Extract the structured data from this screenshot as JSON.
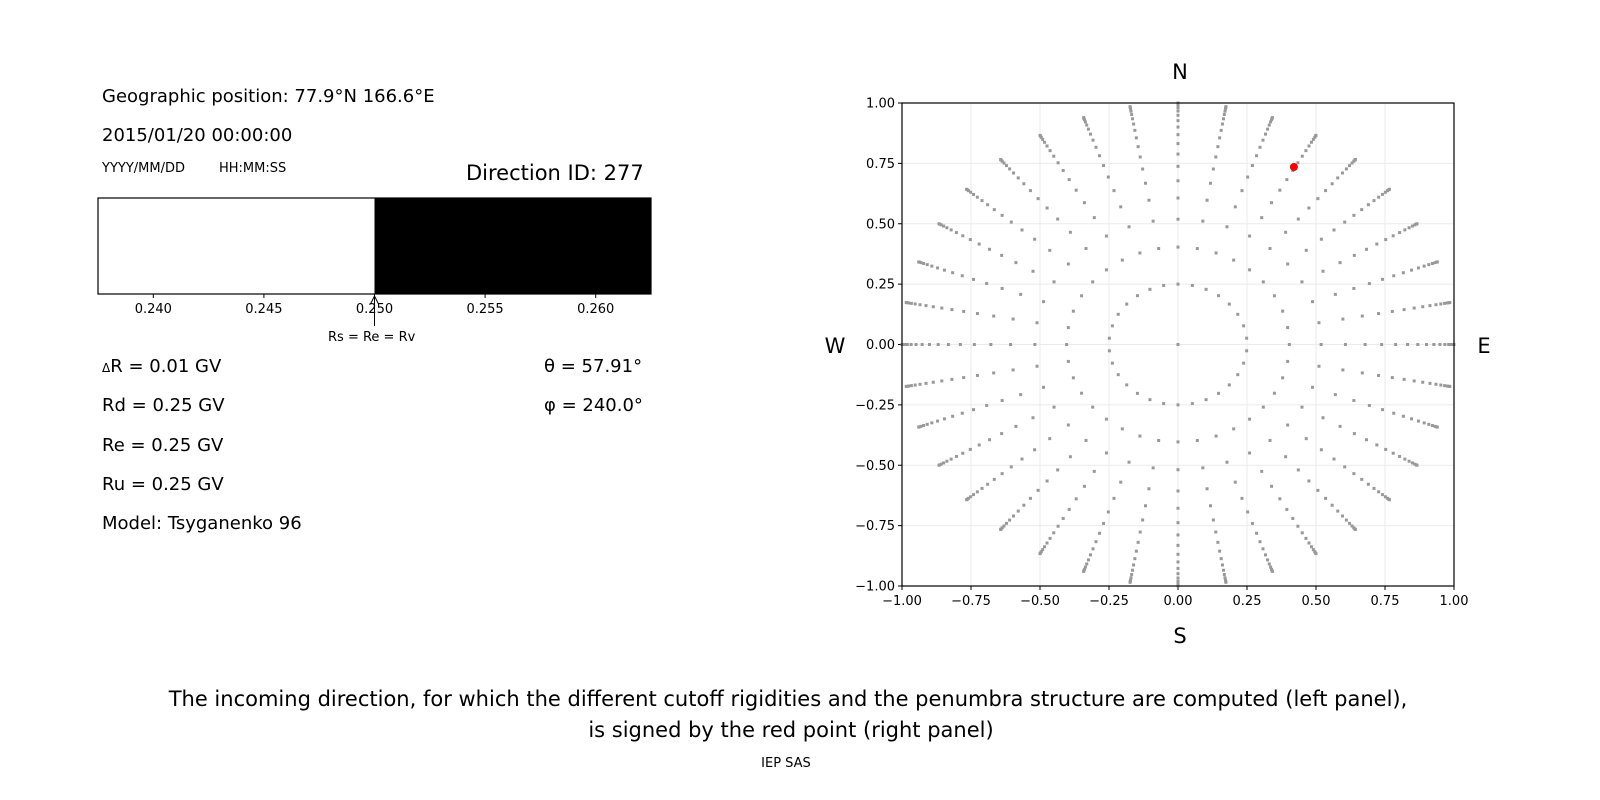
{
  "left_panel": {
    "geo_position": "Geographic position: 77.9°N 166.6°E",
    "datetime": "2015/01/20 00:00:00",
    "date_format": "YYYY/MM/DD",
    "time_format": "HH:MM:SS",
    "direction_id": "Direction ID: 277",
    "delta_r_symbol": "Δ",
    "delta_r": "R = 0.01 GV",
    "rd": "Rd = 0.25 GV",
    "re": "Re = 0.25 GV",
    "ru": "Ru = 0.25 GV",
    "model": "Model: Tsyganenko 96",
    "theta": "θ = 57.91°",
    "phi": "φ = 240.0°",
    "arrow_label": "Rs = Re = Rv"
  },
  "caption": {
    "line1": "The incoming direction, for which the different cutoff rigidities and the penumbra structure are computed (left panel),",
    "line2": "is signed by the red point (right panel)"
  },
  "footer": "IEP SAS",
  "chart_data": [
    {
      "type": "bar",
      "description_role": "penumbra",
      "xlim": [
        0.2375,
        0.2625
      ],
      "ticks": [
        "0.240",
        "0.245",
        "0.250",
        "0.255",
        "0.260"
      ],
      "tick_values": [
        0.24,
        0.245,
        0.25,
        0.255,
        0.26
      ],
      "segments": [
        {
          "from": 0.2375,
          "to": 0.25,
          "color": "#ffffff"
        },
        {
          "from": 0.25,
          "to": 0.2625,
          "color": "#000000"
        }
      ],
      "arrow_at": 0.25
    },
    {
      "type": "scatter",
      "xlim": [
        -1,
        1
      ],
      "ylim": [
        -1,
        1
      ],
      "grid": true,
      "xticks": [
        "−1.00",
        "−0.75",
        "−0.50",
        "−0.25",
        "0.00",
        "0.25",
        "0.50",
        "0.75",
        "1.00"
      ],
      "yticks": [
        "−1.00",
        "−0.75",
        "−0.50",
        "−0.25",
        "0.00",
        "0.25",
        "0.50",
        "0.75",
        "1.00"
      ],
      "tick_values": [
        -1,
        -0.75,
        -0.5,
        -0.25,
        0,
        0.25,
        0.5,
        0.75,
        1
      ],
      "compass": {
        "top": "N",
        "bottom": "S",
        "left": "W",
        "right": "E"
      },
      "point_color": "#999999",
      "highlight_color": "#ff0000",
      "grid_points": {
        "center": [
          0,
          0
        ],
        "inner_ring": {
          "radius": 0.25,
          "count": 30
        },
        "spokes": {
          "count": 36,
          "cos_zenith": [
            0.915,
            0.855,
            0.795,
            0.735,
            0.675,
            0.615,
            0.555,
            0.495,
            0.435,
            0.375,
            0.315,
            0.255,
            0.195,
            0.135,
            0.075,
            0.015
          ]
        }
      },
      "highlight_point": {
        "x": 0.42,
        "y": 0.735
      }
    }
  ]
}
